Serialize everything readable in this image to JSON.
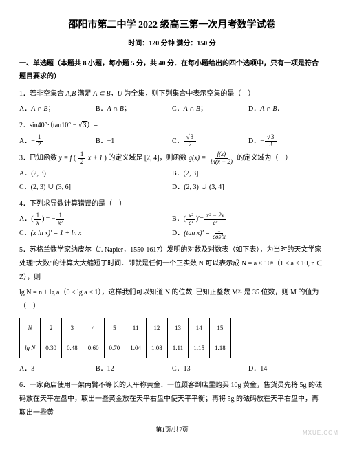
{
  "header": {
    "title": "邵阳市第二中学 2022 级高三第一次月考数学试卷",
    "subtitle": "时间：120 分钟  满分：150 分"
  },
  "section1": {
    "head": "一、单选题（本题共 8 小题，每小题 5 分，共 40 分．在每小题给出的四个选项中，只有一项是符合题目要求的）"
  },
  "q1": {
    "text_pre": "1．若非空集合 ",
    "text_mid": " 满足 ",
    "text_rel": "A ⊂ B",
    "text_mid2": "，",
    "text_u": "U",
    "text_after": " 为全集，则下列集合中表示空集的是（　）",
    "optA_label": "A．",
    "optB_label": "B．",
    "optC_label": "C．",
    "optD_label": "D．"
  },
  "q2": {
    "text": "2．sin40°·（tan10° − √3）=",
    "optA_label": "A．",
    "optA_val_num": "1",
    "optA_val_den": "2",
    "optA_prefix": "−",
    "optB_label": "B．",
    "optB_val": "−1",
    "optC_label": "C．",
    "optC_num": "√3",
    "optC_den": "2",
    "optD_label": "D．",
    "optD_prefix": "−",
    "optD_num": "√3",
    "optD_den": "3"
  },
  "q3": {
    "pre": "3．已知函数 ",
    "y_eq": "y = f",
    "arg_num": "1",
    "arg_den": "2",
    "arg_tail": "x + 1",
    "mid": " 的定义域是 [2, 4]，则函数 ",
    "g_eq": "g(x) =",
    "g_num": "f(x)",
    "g_den": "ln(x − 2)",
    "tail": " 的定义域为（　）",
    "optA": "A．(2, 3)",
    "optB": "B．(2, 3]",
    "optC": "C．(2, 3) ∪ (3, 6]",
    "optD": "D．(2, 3) ∪ (3, 4]"
  },
  "q4": {
    "text": "4．下列求导数计算错误的是（　）",
    "optA_label": "A．",
    "optA_lhs_num": "1",
    "optA_lhs_den": "x",
    "optA_eq": " = −",
    "optA_rhs_num": "1",
    "optA_rhs_den": "x²",
    "optB_label": "B．",
    "optB_lhs_num": "x²",
    "optB_lhs_den": "eˣ",
    "optB_eq": " = ",
    "optB_rhs_num": "x² − 2x",
    "optB_rhs_den": "eˣ",
    "optC_label": "C．",
    "optC_body": "(x ln x)′ = 1 + ln x",
    "optD_label": "D．",
    "optD_lhs": "(tan x)′ = ",
    "optD_num": "1",
    "optD_den": "cos²x"
  },
  "q5": {
    "pre": "5．苏格兰数学家纳皮尔（J. Napier，1550-1617）发明的对数及对数表（如下表），为当时的天文学家处理\"大数\"的计算大大缩短了时间．即就是任何一个正实数 N 可以表示成 N = a × 10ⁿ（1 ≤ a < 10, n ∈ Z），则",
    "mid": "lg N = n + lg a（0 ≤ lg a < 1），这样我们可以知道 N 的位数. 已知正整数 M³¹ 是 35 位数，则 M 的值为（　）",
    "table": {
      "header": [
        "N",
        "2",
        "3",
        "4",
        "5",
        "11",
        "12",
        "13",
        "14",
        "15"
      ],
      "row": [
        "lg N",
        "0.30",
        "0.48",
        "0.60",
        "0.70",
        "1.04",
        "1.08",
        "1.11",
        "1.15",
        "1.18"
      ]
    },
    "optA": "A．3",
    "optB": "B．12",
    "optC": "C．13",
    "optD": "D．14"
  },
  "q6": {
    "text": "6．一家商店使用一架两臂不等长的天平称黄金．一位顾客到店里购买 10g 黄金，售货员先将 5g 的砝码放在天平左盘中，取出一些黄金放在天平右盘中使天平平衡；再将 5g 的砝码放在天平右盘中，再取出一些黄"
  },
  "footer": {
    "page": "第1页/共7页"
  },
  "watermark": "MXUE.COM"
}
